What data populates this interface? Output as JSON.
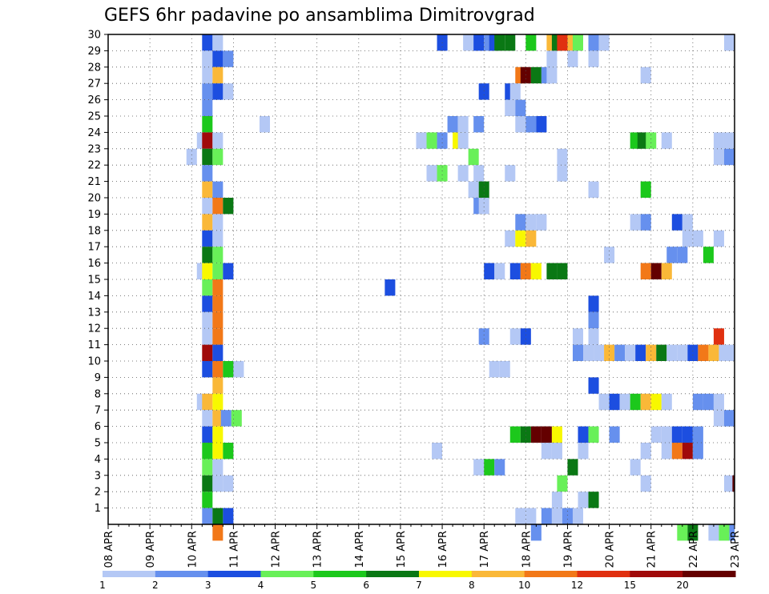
{
  "chart_data": {
    "type": "heatmap",
    "title": "GEFS 6hr padavine po ansamblima Dimitrovgrad",
    "x_tick_labels": [
      "08 APR",
      "09 APR",
      "10 APR",
      "11 APR",
      "12 APR",
      "13 APR",
      "14 APR",
      "15 APR",
      "16 APR",
      "17 APR",
      "18 APR",
      "19 APR",
      "20 APR",
      "21 APR",
      "22 APR",
      "23 APR"
    ],
    "y_tick_labels": [
      "1",
      "2",
      "3",
      "4",
      "5",
      "6",
      "7",
      "8",
      "9",
      "10",
      "11",
      "12",
      "13",
      "14",
      "15",
      "16",
      "17",
      "18",
      "19",
      "20",
      "21",
      "22",
      "23",
      "24",
      "25",
      "26",
      "27",
      "28",
      "29",
      "30"
    ],
    "x_range": [
      0,
      60
    ],
    "y_range": [
      0,
      30
    ],
    "grid": true,
    "colorbar": {
      "levels": [
        "1",
        "2",
        "3",
        "4",
        "5",
        "6",
        "7",
        "8",
        "10",
        "12",
        "15",
        "20"
      ],
      "colors": [
        "#b4c8f5",
        "#6690ee",
        "#1c4ee0",
        "#68f058",
        "#1cc81c",
        "#0a7814",
        "#f8f800",
        "#fab838",
        "#f27818",
        "#e03010",
        "#a00a0a",
        "#640000"
      ]
    },
    "cells": [
      [
        9.0,
        29,
        2
      ],
      [
        9.0,
        28,
        0
      ],
      [
        10.0,
        29,
        0
      ],
      [
        31.5,
        29,
        2
      ],
      [
        34.0,
        29,
        0
      ],
      [
        34.5,
        29,
        0
      ],
      [
        35.0,
        29,
        2
      ],
      [
        36.0,
        29,
        1
      ],
      [
        36.5,
        29,
        2
      ],
      [
        37.0,
        29,
        5
      ],
      [
        38.0,
        29,
        5
      ],
      [
        40.0,
        29,
        4
      ],
      [
        42.0,
        29,
        7
      ],
      [
        42.5,
        29,
        5
      ],
      [
        43.0,
        29,
        9
      ],
      [
        44.0,
        29,
        7
      ],
      [
        44.5,
        29,
        3
      ],
      [
        46.0,
        29,
        1
      ],
      [
        47.0,
        29,
        0
      ],
      [
        59.0,
        29,
        0
      ],
      [
        9.0,
        28,
        0
      ],
      [
        10.0,
        28,
        2
      ],
      [
        11.0,
        28,
        1
      ],
      [
        42.0,
        28,
        0
      ],
      [
        44.0,
        28,
        0
      ],
      [
        46.0,
        28,
        0
      ],
      [
        9.0,
        27,
        0
      ],
      [
        10.0,
        27,
        7
      ],
      [
        39.0,
        27,
        8
      ],
      [
        39.5,
        27,
        11
      ],
      [
        40.5,
        27,
        5
      ],
      [
        41.5,
        27,
        1
      ],
      [
        42.0,
        27,
        0
      ],
      [
        51.0,
        27,
        0
      ],
      [
        9.0,
        26,
        1
      ],
      [
        10.0,
        26,
        2
      ],
      [
        11.0,
        26,
        0
      ],
      [
        35.5,
        26,
        2
      ],
      [
        38.0,
        26,
        2
      ],
      [
        38.5,
        26,
        0
      ],
      [
        9.0,
        25,
        1
      ],
      [
        38.0,
        25,
        0
      ],
      [
        39.0,
        25,
        1
      ],
      [
        9.0,
        24,
        4
      ],
      [
        14.5,
        24,
        0
      ],
      [
        32.5,
        24,
        1
      ],
      [
        33.5,
        24,
        0
      ],
      [
        35.0,
        24,
        1
      ],
      [
        39.0,
        24,
        0
      ],
      [
        40.0,
        24,
        1
      ],
      [
        41.0,
        24,
        2
      ],
      [
        60.0,
        24,
        1
      ],
      [
        8.5,
        23,
        0
      ],
      [
        9.0,
        23,
        10
      ],
      [
        10.0,
        23,
        0
      ],
      [
        29.5,
        23,
        0
      ],
      [
        30.5,
        23,
        3
      ],
      [
        31.5,
        23,
        1
      ],
      [
        33.0,
        23,
        6
      ],
      [
        33.5,
        23,
        0
      ],
      [
        50.0,
        23,
        4
      ],
      [
        50.7,
        23,
        5
      ],
      [
        51.5,
        23,
        3
      ],
      [
        53.0,
        23,
        0
      ],
      [
        58.0,
        23,
        0
      ],
      [
        59.0,
        23,
        0
      ],
      [
        7.5,
        22,
        0
      ],
      [
        9.0,
        22,
        5
      ],
      [
        10.0,
        22,
        3
      ],
      [
        34.5,
        22,
        3
      ],
      [
        43.0,
        22,
        0
      ],
      [
        58.0,
        22,
        0
      ],
      [
        59.0,
        22,
        1
      ],
      [
        9.0,
        21,
        1
      ],
      [
        30.5,
        21,
        0
      ],
      [
        31.5,
        21,
        3
      ],
      [
        33.5,
        21,
        0
      ],
      [
        35.0,
        21,
        0
      ],
      [
        38.0,
        21,
        0
      ],
      [
        43.0,
        21,
        0
      ],
      [
        9.0,
        20,
        7
      ],
      [
        10.0,
        20,
        1
      ],
      [
        34.5,
        20,
        0
      ],
      [
        35.5,
        20,
        5
      ],
      [
        46.0,
        20,
        0
      ],
      [
        51.0,
        20,
        4
      ],
      [
        9.0,
        19,
        0
      ],
      [
        10.0,
        19,
        8
      ],
      [
        11.0,
        19,
        5
      ],
      [
        35.0,
        19,
        1
      ],
      [
        35.5,
        19,
        0
      ],
      [
        9.0,
        18,
        7
      ],
      [
        10.0,
        18,
        0
      ],
      [
        39.0,
        18,
        1
      ],
      [
        40.0,
        18,
        0
      ],
      [
        41.0,
        18,
        0
      ],
      [
        50.0,
        18,
        0
      ],
      [
        51.0,
        18,
        1
      ],
      [
        54.0,
        18,
        2
      ],
      [
        55.0,
        18,
        0
      ],
      [
        9.0,
        17,
        2
      ],
      [
        10.0,
        17,
        0
      ],
      [
        38.0,
        17,
        0
      ],
      [
        39.0,
        17,
        6
      ],
      [
        40.0,
        17,
        7
      ],
      [
        55.0,
        17,
        0
      ],
      [
        56.0,
        17,
        0
      ],
      [
        58.0,
        17,
        0
      ],
      [
        9.0,
        16,
        5
      ],
      [
        10.0,
        16,
        3
      ],
      [
        47.5,
        16,
        0
      ],
      [
        53.5,
        16,
        1
      ],
      [
        54.5,
        16,
        1
      ],
      [
        57.0,
        16,
        4
      ],
      [
        8.5,
        15,
        0
      ],
      [
        9.0,
        15,
        6
      ],
      [
        10.0,
        15,
        3
      ],
      [
        11.0,
        15,
        2
      ],
      [
        36.0,
        15,
        2
      ],
      [
        37.0,
        15,
        0
      ],
      [
        38.5,
        15,
        2
      ],
      [
        39.5,
        15,
        8
      ],
      [
        40.5,
        15,
        6
      ],
      [
        42.0,
        15,
        5
      ],
      [
        43.0,
        15,
        5
      ],
      [
        51.0,
        15,
        8
      ],
      [
        52.0,
        15,
        11
      ],
      [
        53.0,
        15,
        7
      ],
      [
        9.0,
        14,
        3
      ],
      [
        10.0,
        14,
        8
      ],
      [
        26.5,
        14,
        2
      ],
      [
        9.0,
        13,
        2
      ],
      [
        10.0,
        13,
        8
      ],
      [
        46.0,
        13,
        2
      ],
      [
        9.0,
        12,
        0
      ],
      [
        10.0,
        12,
        8
      ],
      [
        46.0,
        12,
        1
      ],
      [
        9.0,
        11,
        0
      ],
      [
        10.0,
        11,
        8
      ],
      [
        35.5,
        11,
        1
      ],
      [
        38.5,
        11,
        0
      ],
      [
        39.5,
        11,
        2
      ],
      [
        44.5,
        11,
        0
      ],
      [
        46.0,
        11,
        0
      ],
      [
        58.0,
        11,
        9
      ],
      [
        9.0,
        10,
        10
      ],
      [
        10.0,
        10,
        2
      ],
      [
        44.5,
        10,
        1
      ],
      [
        45.5,
        10,
        0
      ],
      [
        46.5,
        10,
        0
      ],
      [
        47.5,
        10,
        7
      ],
      [
        48.5,
        10,
        1
      ],
      [
        49.5,
        10,
        0
      ],
      [
        50.5,
        10,
        2
      ],
      [
        51.5,
        10,
        7
      ],
      [
        52.5,
        10,
        5
      ],
      [
        53.5,
        10,
        0
      ],
      [
        54.5,
        10,
        0
      ],
      [
        55.5,
        10,
        2
      ],
      [
        56.5,
        10,
        8
      ],
      [
        57.5,
        10,
        7
      ],
      [
        58.5,
        10,
        0
      ],
      [
        59.5,
        10,
        0
      ],
      [
        9.0,
        9,
        2
      ],
      [
        10.0,
        9,
        8
      ],
      [
        11.0,
        9,
        4
      ],
      [
        12.0,
        9,
        0
      ],
      [
        36.5,
        9,
        0
      ],
      [
        37.5,
        9,
        0
      ],
      [
        10.0,
        8,
        7
      ],
      [
        46.0,
        8,
        2
      ],
      [
        8.5,
        7,
        0
      ],
      [
        9.0,
        7,
        7
      ],
      [
        10.0,
        7,
        6
      ],
      [
        47.0,
        7,
        0
      ],
      [
        48.0,
        7,
        2
      ],
      [
        49.0,
        7,
        0
      ],
      [
        50.0,
        7,
        4
      ],
      [
        51.0,
        7,
        7
      ],
      [
        52.0,
        7,
        6
      ],
      [
        53.0,
        7,
        0
      ],
      [
        56.0,
        7,
        1
      ],
      [
        57.0,
        7,
        1
      ],
      [
        58.0,
        7,
        0
      ],
      [
        9.0,
        6,
        0
      ],
      [
        10.0,
        6,
        7
      ],
      [
        10.8,
        6,
        1
      ],
      [
        11.8,
        6,
        3
      ],
      [
        58.0,
        6,
        0
      ],
      [
        59.0,
        6,
        1
      ],
      [
        9.0,
        5,
        2
      ],
      [
        10.0,
        5,
        6
      ],
      [
        38.5,
        5,
        4
      ],
      [
        39.5,
        5,
        5
      ],
      [
        40.5,
        5,
        11
      ],
      [
        41.5,
        5,
        11
      ],
      [
        42.5,
        5,
        6
      ],
      [
        45.0,
        5,
        2
      ],
      [
        46.0,
        5,
        3
      ],
      [
        48.0,
        5,
        1
      ],
      [
        52.0,
        5,
        0
      ],
      [
        53.0,
        5,
        0
      ],
      [
        54.0,
        5,
        2
      ],
      [
        55.0,
        5,
        2
      ],
      [
        56.0,
        5,
        1
      ],
      [
        9.0,
        4,
        4
      ],
      [
        10.0,
        4,
        6
      ],
      [
        11.0,
        4,
        4
      ],
      [
        31.0,
        4,
        0
      ],
      [
        41.5,
        4,
        0
      ],
      [
        42.5,
        4,
        0
      ],
      [
        45.0,
        4,
        0
      ],
      [
        51.0,
        4,
        0
      ],
      [
        53.0,
        4,
        0
      ],
      [
        54.0,
        4,
        8
      ],
      [
        55.0,
        4,
        10
      ],
      [
        56.0,
        4,
        1
      ],
      [
        9.0,
        3,
        3
      ],
      [
        10.0,
        3,
        0
      ],
      [
        35.0,
        3,
        0
      ],
      [
        36.0,
        3,
        4
      ],
      [
        37.0,
        3,
        1
      ],
      [
        44.0,
        3,
        5
      ],
      [
        50.0,
        3,
        0
      ],
      [
        9.0,
        2,
        5
      ],
      [
        10.0,
        2,
        0
      ],
      [
        11.0,
        2,
        0
      ],
      [
        43.0,
        2,
        3
      ],
      [
        51.0,
        2,
        0
      ],
      [
        59.0,
        2,
        0
      ],
      [
        59.8,
        2,
        11
      ],
      [
        9.0,
        1,
        4
      ],
      [
        42.5,
        1,
        0
      ],
      [
        45.0,
        1,
        0
      ],
      [
        46.0,
        1,
        5
      ],
      [
        9.0,
        0,
        1
      ],
      [
        10.0,
        0,
        5
      ],
      [
        11.0,
        0,
        2
      ],
      [
        39.0,
        0,
        0
      ],
      [
        40.0,
        0,
        0
      ],
      [
        41.5,
        0,
        1
      ],
      [
        42.5,
        0,
        0
      ],
      [
        43.5,
        0,
        1
      ],
      [
        44.5,
        0,
        0
      ],
      [
        10.0,
        -1,
        8
      ],
      [
        40.5,
        -1,
        1
      ],
      [
        54.5,
        -1,
        3
      ],
      [
        55.5,
        -1,
        5
      ],
      [
        57.5,
        -1,
        0
      ],
      [
        58.5,
        -1,
        3
      ],
      [
        59.5,
        -1,
        1
      ]
    ]
  }
}
